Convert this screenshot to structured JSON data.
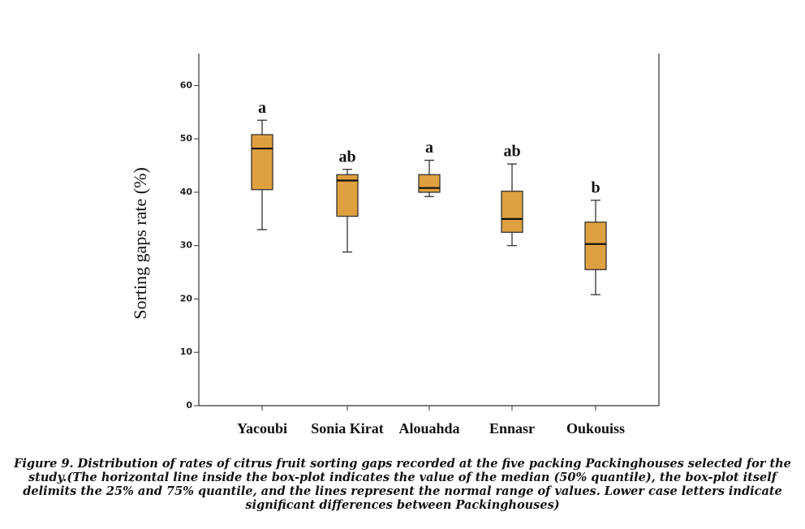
{
  "chart_data": {
    "type": "box",
    "ylabel": "Sorting gaps rate  (%)",
    "categories": [
      "Yacoubi",
      "Sonia Kirat",
      "Alouahda",
      "Ennasr",
      "Oukouiss"
    ],
    "low": [
      33,
      28.8,
      39.2,
      30,
      20.8
    ],
    "q1": [
      40.5,
      35.5,
      40,
      32.5,
      25.5
    ],
    "median": [
      48.2,
      42.2,
      40.8,
      35,
      30.3
    ],
    "q3": [
      50.8,
      43.3,
      43.3,
      40.2,
      34.4
    ],
    "high": [
      53.5,
      44.3,
      46,
      45.3,
      38.5
    ],
    "letters": [
      "a",
      "ab",
      "a",
      "ab",
      "b"
    ],
    "color": "#dfa03f",
    "ylim": [
      0,
      66
    ],
    "yticks": [
      0,
      10,
      20,
      30,
      40,
      50,
      60
    ]
  },
  "caption": "Figure 9. Distribution of rates of citrus fruit sorting gaps recorded at the five packing Packinghouses selected for the study.(The horizontal line inside the box-plot indicates the value of the median (50% quantile), the box-plot itself delimits the 25% and 75% quantile, and the lines represent the normal range of values. Lower case letters indicate significant differences between Packinghouses)"
}
